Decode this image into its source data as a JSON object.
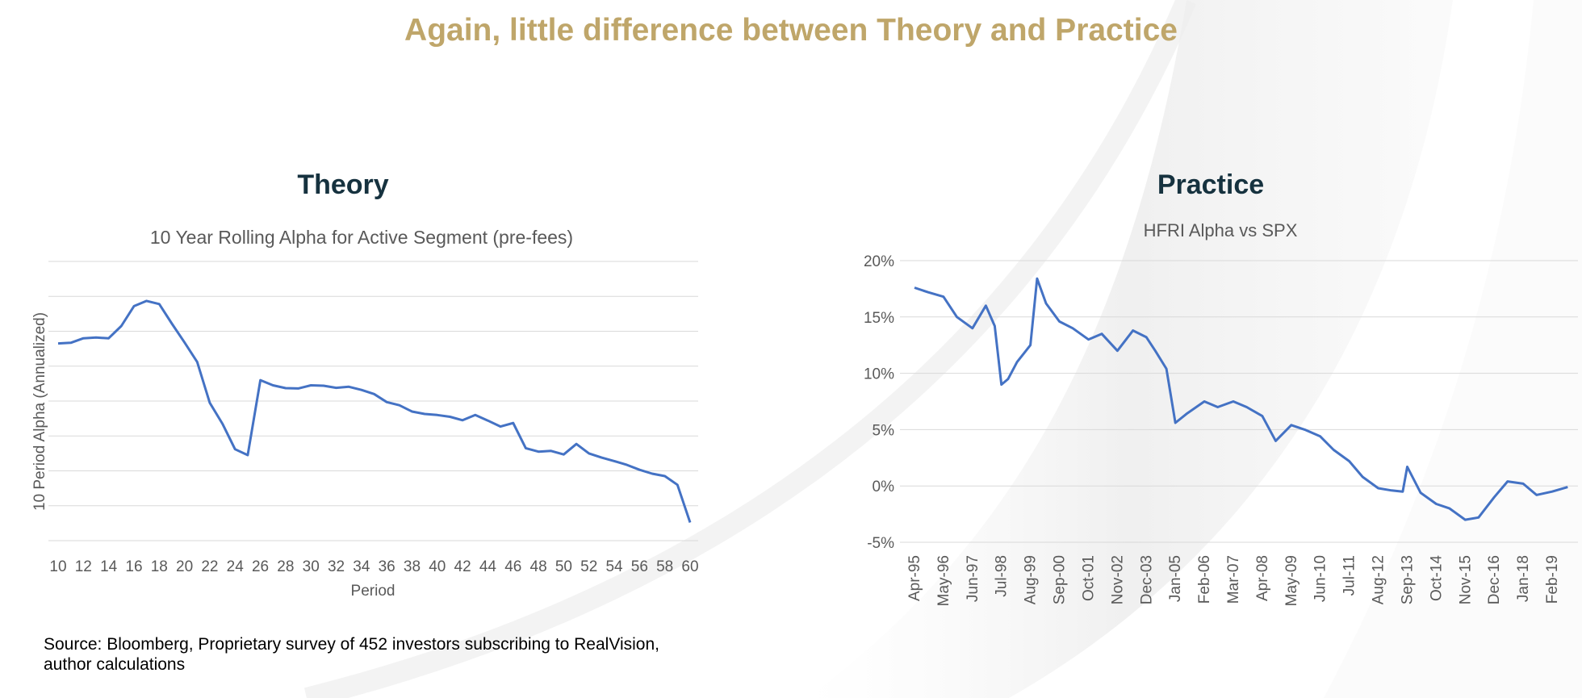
{
  "slide": {
    "title": "Again, little difference between Theory and Practice",
    "source": "Source: Bloomberg, Proprietary survey of 452 investors subscribing to RealVision, author calculations"
  },
  "colors": {
    "title": "#bfa66a",
    "panel_title": "#16323f",
    "line": "#4472c4",
    "grid": "#d9d9d9",
    "text": "#595959"
  },
  "panels": {
    "theory": {
      "heading": "Theory"
    },
    "practice": {
      "heading": "Practice"
    }
  },
  "chart_data": [
    {
      "id": "theory",
      "type": "line",
      "title": "10 Year Rolling Alpha for Active Segment (pre-fees)",
      "xlabel": "Period",
      "ylabel": "10 Period Alpha (Annualized)",
      "y_tick_labels_shown": false,
      "grid": true,
      "legend": "none",
      "xlim": [
        10,
        60
      ],
      "x_ticks": [
        10,
        12,
        14,
        16,
        18,
        20,
        22,
        24,
        26,
        28,
        30,
        32,
        34,
        36,
        38,
        40,
        42,
        44,
        46,
        48,
        50,
        52,
        54,
        56,
        58,
        60
      ],
      "series": [
        {
          "x": [
            10,
            11,
            12,
            13,
            14,
            15,
            16,
            17,
            18,
            19,
            20,
            21,
            22,
            23,
            24,
            25,
            26,
            27,
            28,
            29,
            30,
            31,
            32,
            33,
            34,
            35,
            36,
            37,
            38,
            39,
            40,
            41,
            42,
            43,
            44,
            45,
            46,
            47,
            48,
            49,
            50,
            51,
            52,
            53,
            54,
            55,
            56,
            57,
            58,
            59,
            60
          ],
          "values": [
            5.65,
            5.67,
            5.8,
            5.82,
            5.8,
            6.15,
            6.72,
            6.87,
            6.78,
            6.22,
            5.68,
            5.12,
            3.95,
            3.35,
            2.62,
            2.45,
            4.6,
            4.45,
            4.37,
            4.36,
            4.45,
            4.44,
            4.38,
            4.41,
            4.32,
            4.2,
            3.97,
            3.88,
            3.7,
            3.63,
            3.6,
            3.55,
            3.45,
            3.6,
            3.44,
            3.27,
            3.37,
            2.65,
            2.55,
            2.57,
            2.47,
            2.77,
            2.5,
            2.38,
            2.28,
            2.17,
            2.03,
            1.92,
            1.85,
            1.6,
            0.52
          ]
        }
      ]
    },
    {
      "id": "practice",
      "type": "line",
      "title": "HFRI Alpha vs SPX",
      "xlabel": "",
      "ylabel": "",
      "ylim": [
        -5,
        20
      ],
      "y_ticks": [
        -5,
        0,
        5,
        10,
        15,
        20
      ],
      "y_tick_labels": [
        "-5%",
        "0%",
        "5%",
        "10%",
        "15%",
        "20%"
      ],
      "x_tick_labels": [
        "Apr-95",
        "May-96",
        "Jun-97",
        "Jul-98",
        "Aug-99",
        "Sep-00",
        "Oct-01",
        "Nov-02",
        "Dec-03",
        "Jan-05",
        "Feb-06",
        "Mar-07",
        "Apr-08",
        "May-09",
        "Jun-10",
        "Jul-11",
        "Aug-12",
        "Sep-13",
        "Oct-14",
        "Nov-15",
        "Dec-16",
        "Jan-18",
        "Feb-19"
      ],
      "grid": true,
      "legend": "none",
      "series": [
        {
          "x": [
            "Apr-95",
            "Oct-95",
            "May-96",
            "Nov-96",
            "Jun-97",
            "Dec-97",
            "Apr-98",
            "Jul-98",
            "Oct-98",
            "Feb-99",
            "Aug-99",
            "Nov-99",
            "Mar-00",
            "Sep-00",
            "Mar-01",
            "Oct-01",
            "Apr-02",
            "Nov-02",
            "Jun-03",
            "Dec-03",
            "Apr-04",
            "Sep-04",
            "Jan-05",
            "Jun-05",
            "Feb-06",
            "Aug-06",
            "Mar-07",
            "Sep-07",
            "Apr-08",
            "Oct-08",
            "May-09",
            "Nov-09",
            "Jun-10",
            "Dec-10",
            "Jul-11",
            "Jan-12",
            "Aug-12",
            "Feb-13",
            "Jul-13",
            "Sep-13",
            "Mar-14",
            "Oct-14",
            "Apr-15",
            "Nov-15",
            "May-16",
            "Dec-16",
            "Jun-17",
            "Jan-18",
            "Jul-18",
            "Feb-19",
            "Sep-19"
          ],
          "values": [
            17.6,
            17.2,
            16.8,
            15.0,
            14.0,
            16.0,
            14.2,
            9.0,
            9.5,
            11.0,
            12.5,
            18.4,
            16.2,
            14.6,
            14.0,
            13.0,
            13.5,
            12.0,
            13.8,
            13.2,
            12.0,
            10.4,
            5.6,
            6.4,
            7.5,
            7.0,
            7.5,
            7.0,
            6.2,
            4.0,
            5.4,
            5.0,
            4.4,
            3.2,
            2.2,
            0.8,
            -0.2,
            -0.4,
            -0.5,
            1.7,
            -0.6,
            -1.6,
            -2.0,
            -3.0,
            -2.8,
            -1.0,
            0.4,
            0.2,
            -0.8,
            -0.5,
            -0.1
          ]
        }
      ]
    }
  ]
}
